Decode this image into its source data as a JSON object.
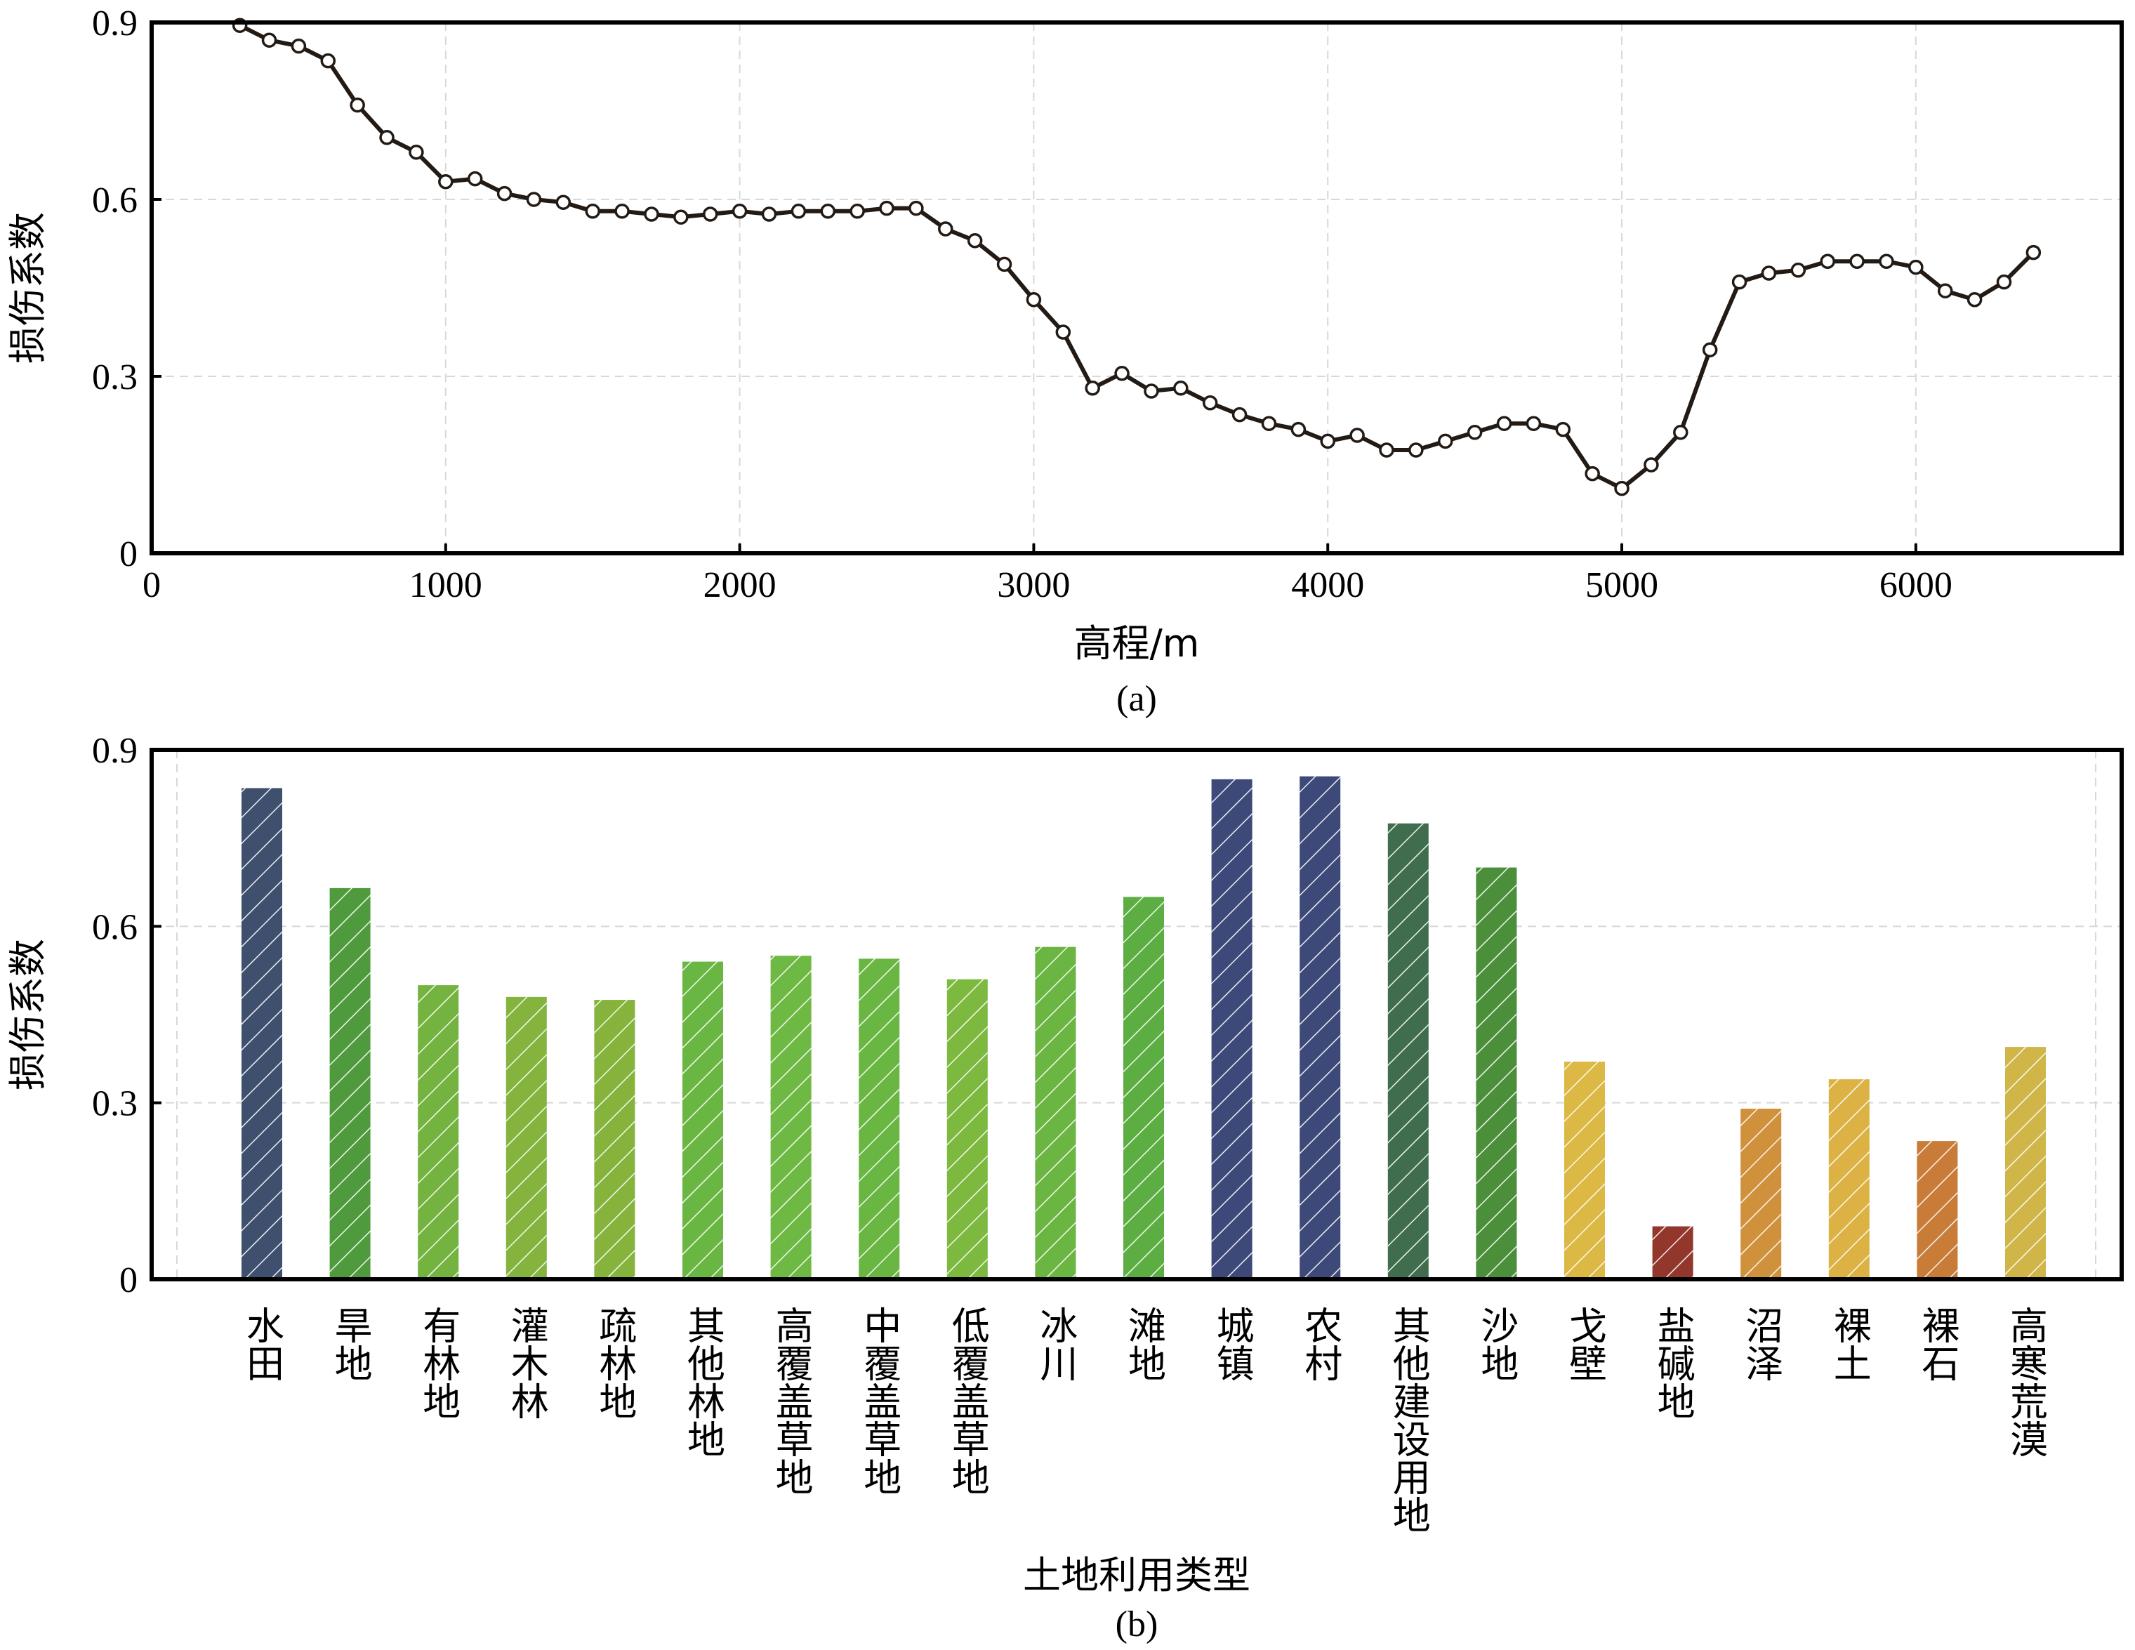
{
  "chart_data": [
    {
      "type": "line",
      "caption": "(a)",
      "xlabel": "高程/m",
      "ylabel": "损伤系数",
      "xlim": [
        0,
        6700
      ],
      "ylim": [
        0,
        0.9
      ],
      "xticks": [
        0,
        1000,
        2000,
        3000,
        4000,
        5000,
        6000
      ],
      "yticks": [
        0,
        0.3,
        0.6,
        0.9
      ],
      "ytick_labels": [
        "0",
        "0.3",
        "0.6",
        "0.9"
      ],
      "grid": true,
      "line_color": "#231a14",
      "series": [
        {
          "x": [
            300,
            400,
            500,
            600,
            700,
            800,
            900,
            1000,
            1100,
            1200,
            1300,
            1400,
            1500,
            1600,
            1700,
            1800,
            1900,
            2000,
            2100,
            2200,
            2300,
            2400,
            2500,
            2600,
            2700,
            2800,
            2900,
            3000,
            3100,
            3200,
            3300,
            3400,
            3500,
            3600,
            3700,
            3800,
            3900,
            4000,
            4100,
            4200,
            4300,
            4400,
            4500,
            4600,
            4700,
            4800,
            4900,
            5000,
            5100,
            5200,
            5300,
            5400,
            5500,
            5600,
            5700,
            5800,
            5900,
            6000,
            6100,
            6200,
            6300,
            6400
          ],
          "y": [
            0.895,
            0.87,
            0.86,
            0.835,
            0.76,
            0.705,
            0.68,
            0.63,
            0.635,
            0.61,
            0.6,
            0.595,
            0.58,
            0.58,
            0.575,
            0.57,
            0.575,
            0.58,
            0.575,
            0.58,
            0.58,
            0.58,
            0.585,
            0.585,
            0.55,
            0.53,
            0.49,
            0.43,
            0.375,
            0.28,
            0.305,
            0.275,
            0.28,
            0.255,
            0.235,
            0.22,
            0.21,
            0.19,
            0.2,
            0.175,
            0.175,
            0.19,
            0.205,
            0.22,
            0.22,
            0.21,
            0.135,
            0.11,
            0.15,
            0.205,
            0.345,
            0.46,
            0.475,
            0.48,
            0.495,
            0.495,
            0.495,
            0.485,
            0.445,
            0.43,
            0.46,
            0.51
          ]
        }
      ]
    },
    {
      "type": "bar",
      "caption": "(b)",
      "xlabel": "土地利用类型",
      "ylabel": "损伤系数",
      "ylim": [
        0,
        0.9
      ],
      "yticks": [
        0,
        0.3,
        0.6,
        0.9
      ],
      "ytick_labels": [
        "0",
        "0.3",
        "0.6",
        "0.9"
      ],
      "grid": true,
      "hatch": "diagonal",
      "categories": [
        "水田",
        "旱地",
        "有林地",
        "灌木林",
        "疏林地",
        "其他林地",
        "高覆盖草地",
        "中覆盖草地",
        "低覆盖草地",
        "冰川",
        "滩地",
        "城镇",
        "农村",
        "其他建设用地",
        "沙地",
        "戈壁",
        "盐碱地",
        "沼泽",
        "裸土",
        "裸石",
        "高寒荒漠"
      ],
      "values": [
        0.835,
        0.665,
        0.5,
        0.48,
        0.475,
        0.54,
        0.55,
        0.545,
        0.51,
        0.565,
        0.65,
        0.85,
        0.855,
        0.775,
        0.7,
        0.37,
        0.09,
        0.29,
        0.34,
        0.235,
        0.395
      ],
      "colors": [
        "#3f4f6e",
        "#4f9a3c",
        "#74b340",
        "#84b43e",
        "#86b33c",
        "#6ab642",
        "#6db943",
        "#6ab642",
        "#7db83f",
        "#6bb542",
        "#5cae42",
        "#3d4a79",
        "#3d4a79",
        "#3f6d4d",
        "#4b8f3a",
        "#dcb844",
        "#93362b",
        "#d0913c",
        "#ddb244",
        "#c87c38",
        "#d0b648"
      ]
    }
  ]
}
